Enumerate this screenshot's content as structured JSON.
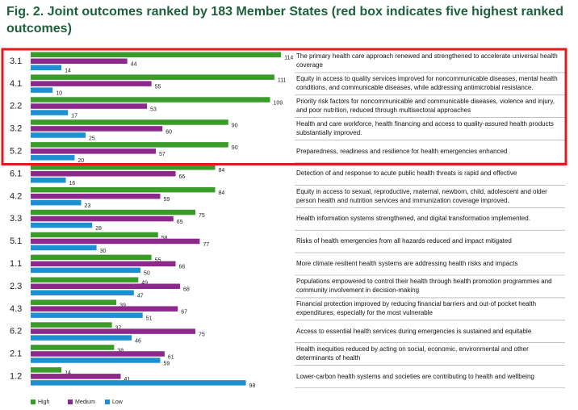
{
  "chart_data": {
    "type": "bar",
    "orientation": "horizontal",
    "title": "Fig. 2. Joint outcomes ranked by 183 Member States (red box indicates five highest ranked outcomes)",
    "categories": [
      "3.1",
      "4.1",
      "2.2",
      "3.2",
      "5.2",
      "6.1",
      "4.2",
      "3.3",
      "5.1",
      "1.1",
      "2.3",
      "4.3",
      "6.2",
      "2.1",
      "1.2"
    ],
    "descriptions": [
      "The primary health care approach renewed and strengthened to accelerate universal health coverage",
      "Equity in access to quality services improved for noncommunicable diseases, mental health conditions, and communicable diseases, while addressing antimicrobial resistance.",
      "Priority risk factors for noncommunicable and communicable diseases, violence and injury, and poor nutrition, reduced through multisectoral approaches",
      "Health and care workforce, health financing and access to quality-assured health products substantially improved.",
      "Preparedness, readiness and resilience for health emergencies enhanced",
      "Detection of and response to acute public health threats is rapid and effective",
      "Equity in access to sexual, reproductive, maternal, newborn, child, adolescent and older person health and nutrition services and immunization coverage improved.",
      "Health information systems strengthened, and digital transformation implemented.",
      "Risks of health emergencies from all hazards reduced and impact mitigated",
      "More climate resilient health systems are addressing health risks and impacts",
      "Populations empowered to control their health through health promotion programmes and community involvement in decision-making",
      "Financial protection improved by reducing financial barriers and out-of pocket health expenditures, especially for the most vulnerable",
      "Access to essential health services during emergencies is sustained and equitable",
      "Health inequities reduced by acting on social, economic, environmental and other determinants of health",
      "Lower-carbon health systems and societies are contributing to health and wellbeing"
    ],
    "series": [
      {
        "name": "High",
        "color": "#3a9a2a",
        "values": [
          114,
          111,
          109,
          90,
          90,
          84,
          84,
          75,
          58,
          55,
          49,
          39,
          37,
          38,
          14
        ]
      },
      {
        "name": "Medium",
        "color": "#8c2a8c",
        "values": [
          44,
          55,
          53,
          60,
          57,
          66,
          59,
          65,
          77,
          66,
          68,
          67,
          75,
          61,
          41
        ]
      },
      {
        "name": "Low",
        "color": "#1e8fd0",
        "values": [
          14,
          10,
          17,
          25,
          20,
          16,
          23,
          28,
          30,
          50,
          47,
          51,
          46,
          59,
          98
        ]
      }
    ],
    "highlight_count": 5,
    "highlight_color": "#e21a1a",
    "legend": "bottom-left"
  }
}
